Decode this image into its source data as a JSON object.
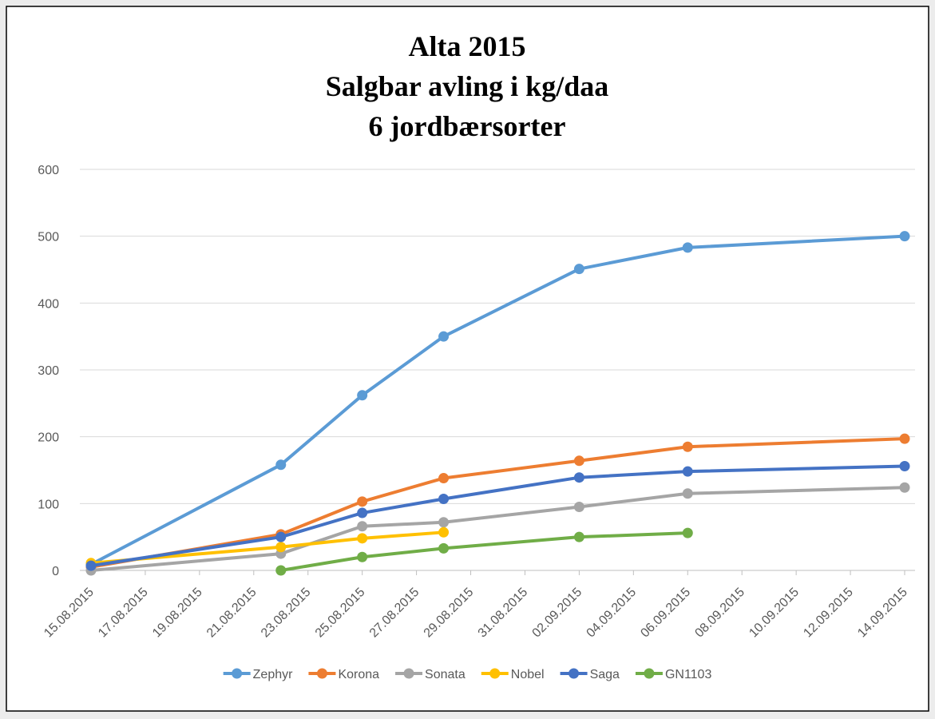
{
  "chart_data": {
    "type": "line",
    "title": [
      "Alta 2015",
      "Salgbar avling i kg/daa",
      "6 jordbærsorter"
    ],
    "x": [
      "15.08.2015",
      "22.08.2015",
      "25.08.2015",
      "28.08.2015",
      "02.09.2015",
      "06.09.2015",
      "14.09.2015"
    ],
    "series": [
      {
        "name": "Zephyr",
        "color": "#5b9bd5",
        "values": [
          9,
          158,
          262,
          350,
          451,
          483,
          500
        ]
      },
      {
        "name": "Korona",
        "color": "#ed7d31",
        "values": [
          5,
          54,
          103,
          138,
          164,
          185,
          197
        ]
      },
      {
        "name": "Sonata",
        "color": "#a5a5a5",
        "values": [
          0,
          25,
          66,
          72,
          95,
          115,
          124
        ]
      },
      {
        "name": "Nobel",
        "color": "#ffc000",
        "values": [
          11,
          35,
          48,
          57,
          null,
          null,
          null
        ]
      },
      {
        "name": "Saga",
        "color": "#4472c4",
        "values": [
          7,
          50,
          86,
          107,
          139,
          148,
          156
        ]
      },
      {
        "name": "GN1103",
        "color": "#70ad47",
        "values": [
          null,
          0,
          20,
          33,
          50,
          56,
          null
        ]
      }
    ],
    "xlim": [
      "15.08.2015",
      "14.09.2015"
    ],
    "xticks": [
      "15.08.2015",
      "17.08.2015",
      "19.08.2015",
      "21.08.2015",
      "23.08.2015",
      "25.08.2015",
      "27.08.2015",
      "29.08.2015",
      "31.08.2015",
      "02.09.2015",
      "04.09.2015",
      "06.09.2015",
      "08.09.2015",
      "10.09.2015",
      "12.09.2015",
      "14.09.2015"
    ],
    "ylim": [
      0,
      600
    ],
    "yticks": [
      0,
      100,
      200,
      300,
      400,
      500,
      600
    ],
    "grid": true,
    "legend": "bottom"
  }
}
